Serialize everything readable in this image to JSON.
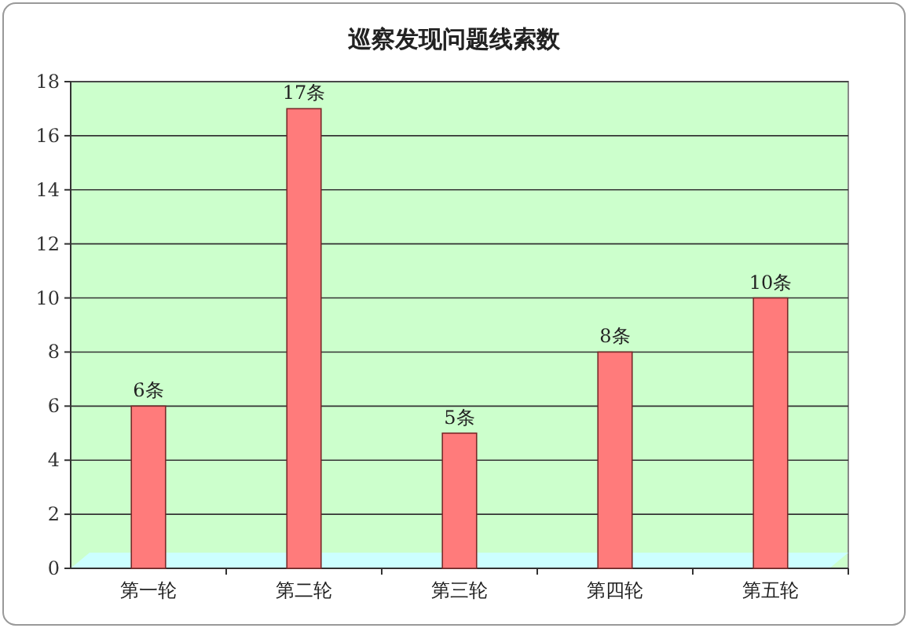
{
  "chart_data": {
    "type": "bar",
    "title": "巡察发现问题线索数",
    "categories": [
      "第一轮",
      "第二轮",
      "第三轮",
      "第四轮",
      "第五轮"
    ],
    "values": [
      6,
      17,
      5,
      8,
      10
    ],
    "value_labels": [
      "6条",
      "17条",
      "5条",
      "8条",
      "10条"
    ],
    "color": "#ff7b7b",
    "ylim": [
      0,
      18
    ],
    "yticks": [
      0,
      2,
      4,
      6,
      8,
      10,
      12,
      14,
      16,
      18
    ],
    "grid": "y"
  }
}
